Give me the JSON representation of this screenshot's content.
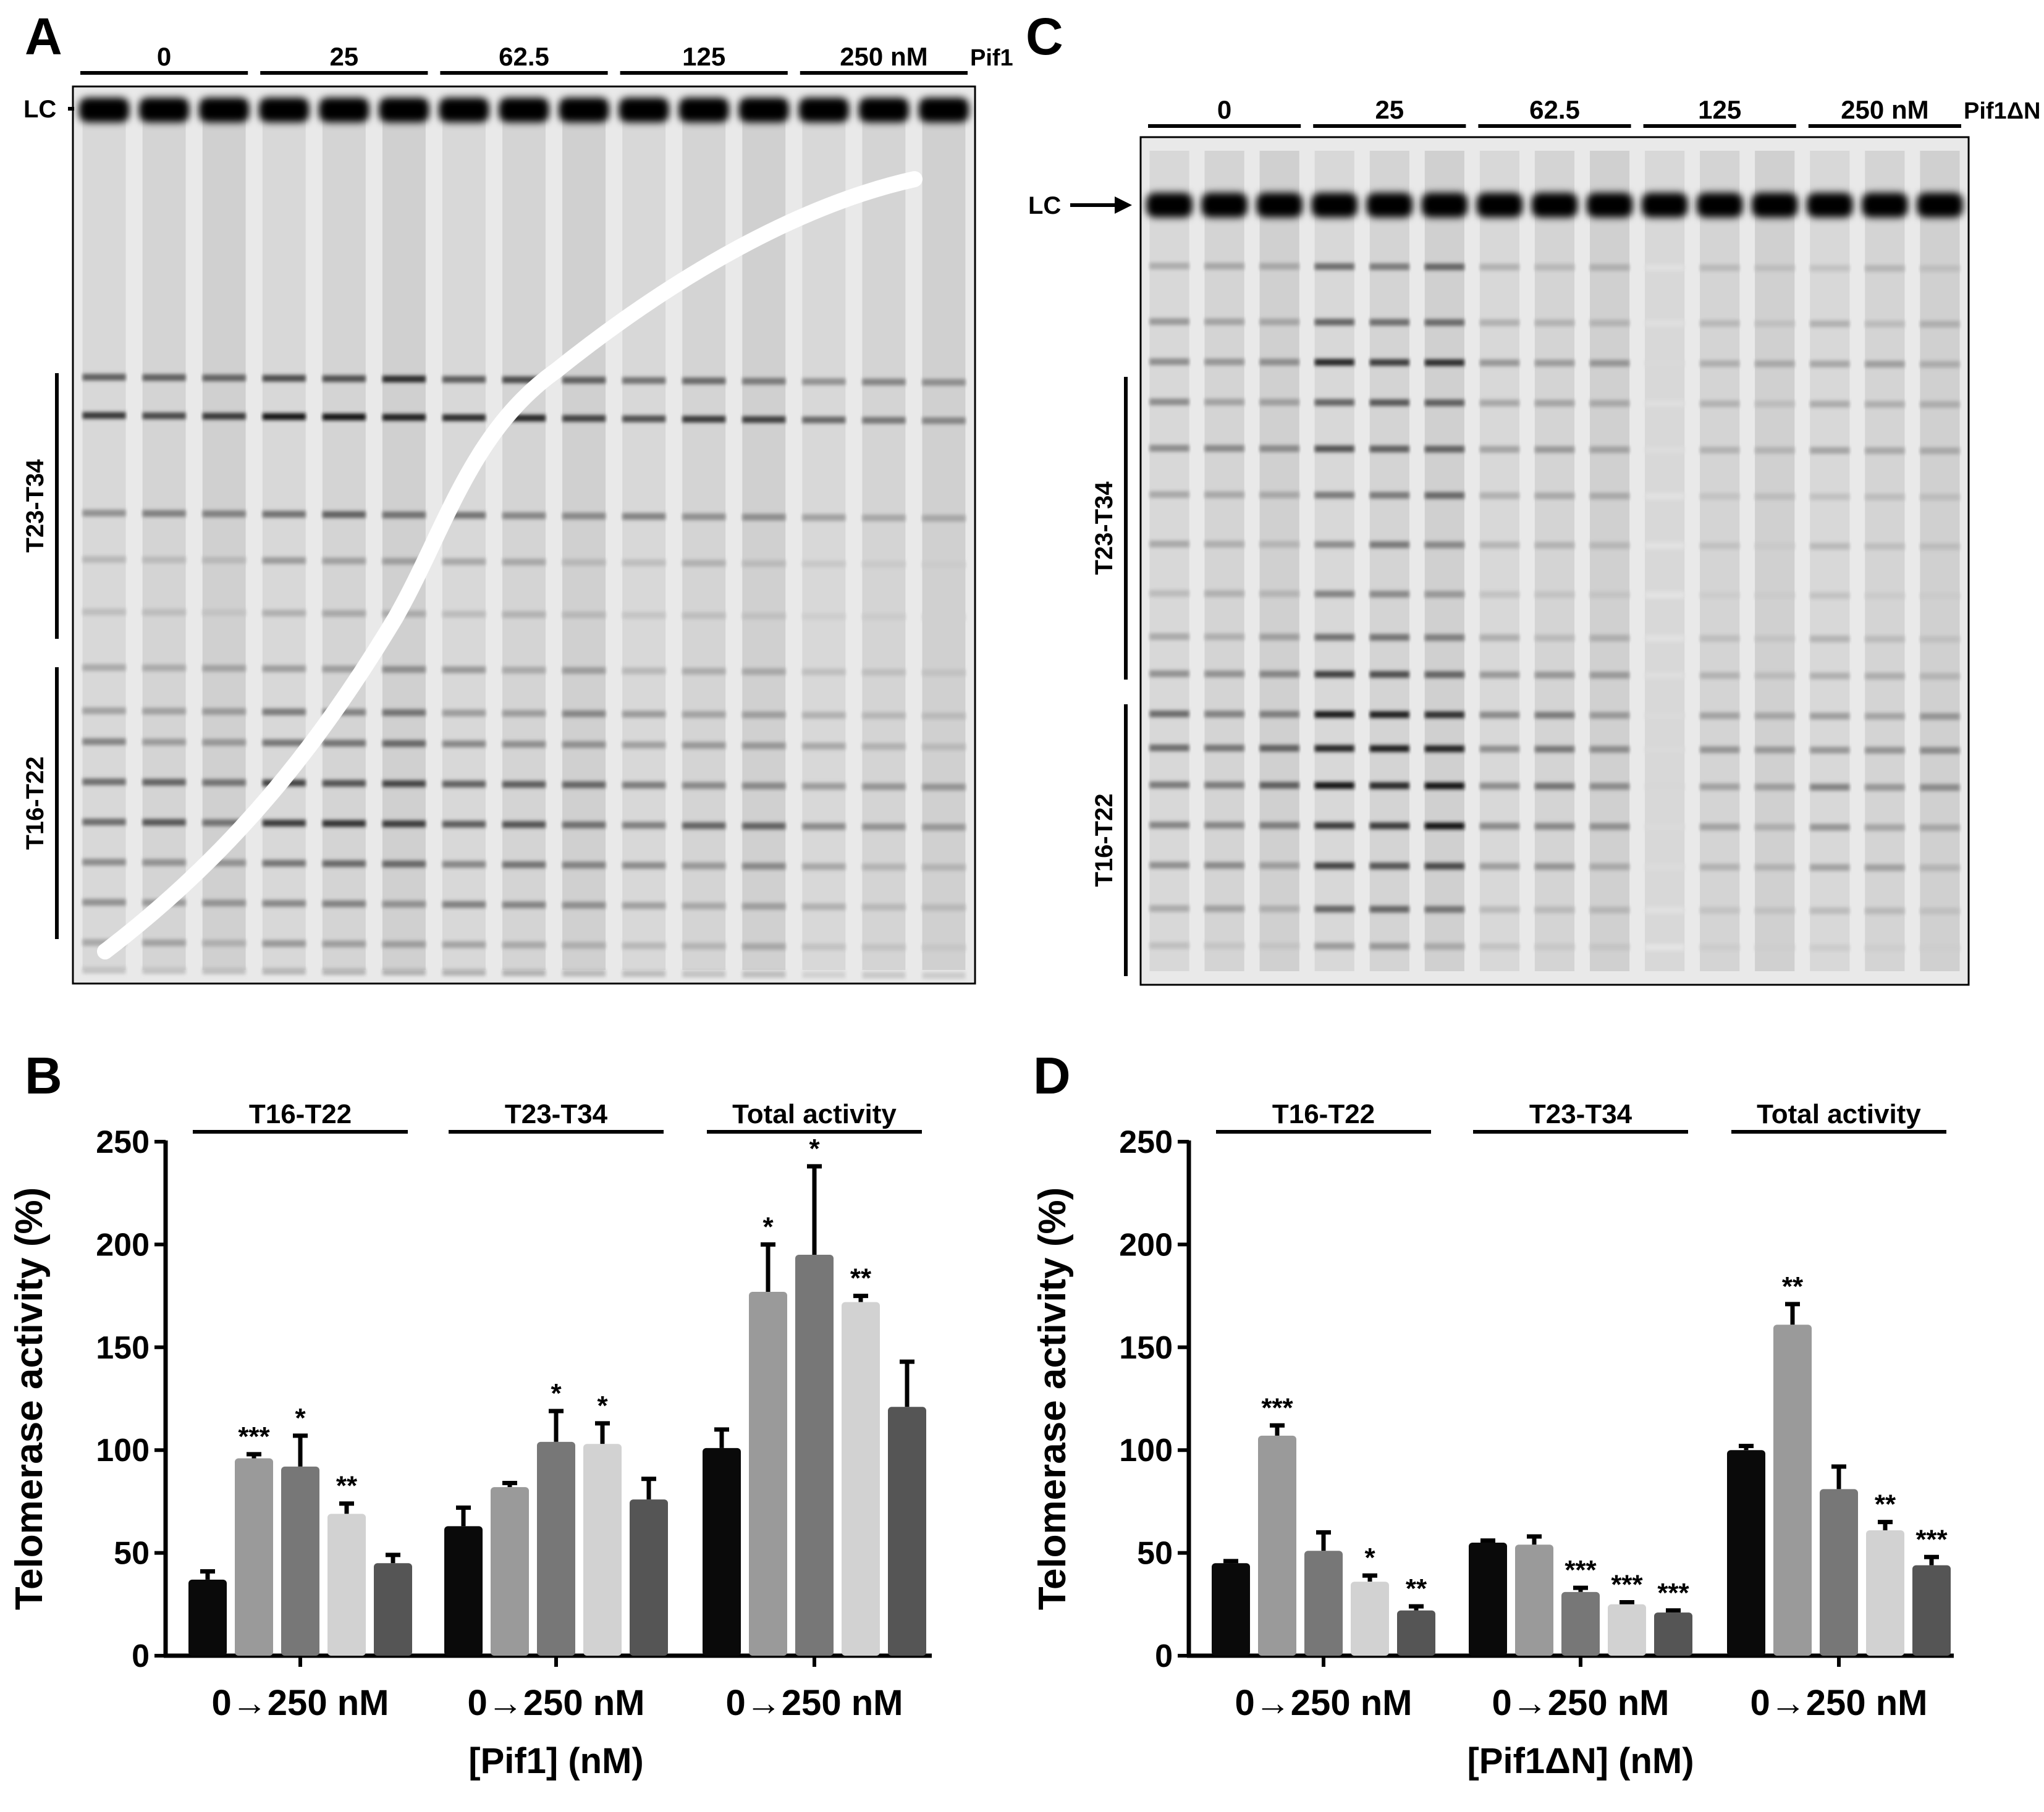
{
  "panels": {
    "A": {
      "letter": "A",
      "lane_groups": [
        "0",
        "25",
        "62.5",
        "125",
        "250 nM"
      ],
      "protein": "Pif1",
      "lc": "LC",
      "band_regions": [
        "T23-T34",
        "T16-T22"
      ]
    },
    "C": {
      "letter": "C",
      "lane_groups": [
        "0",
        "25",
        "62.5",
        "125",
        "250 nM"
      ],
      "protein": "Pif1ΔN",
      "lc": "LC",
      "band_regions": [
        "T23-T34",
        "T16-T22"
      ]
    },
    "B": {
      "letter": "B"
    },
    "D": {
      "letter": "D"
    }
  },
  "colors": {
    "bars": [
      "#0a0a0a",
      "#9a9a9a",
      "#777777",
      "#d2d2d2",
      "#555555"
    ],
    "gel_background": "#e9e9e9",
    "band": "#1a1a1a"
  },
  "chart_data": [
    {
      "type": "bar",
      "panel": "B",
      "title": "",
      "ylabel": "Telomerase activity (%)",
      "xlabel": "[Pif1] (nM)",
      "ylim": [
        0,
        250
      ],
      "yticks": [
        0,
        50,
        100,
        150,
        200,
        250
      ],
      "groups": [
        "T16-T22",
        "T23-T34",
        "Total activity"
      ],
      "group_xlabel": "0→250 nM",
      "series": [
        {
          "name": "0 nM",
          "values": [
            37,
            63,
            101
          ],
          "errors": [
            4,
            9,
            9
          ],
          "stars": [
            "",
            "",
            ""
          ]
        },
        {
          "name": "25 nM",
          "values": [
            96,
            82,
            177
          ],
          "errors": [
            2,
            2,
            23
          ],
          "stars": [
            "***",
            "",
            "*"
          ]
        },
        {
          "name": "62.5 nM",
          "values": [
            92,
            104,
            195
          ],
          "errors": [
            15,
            15,
            43
          ],
          "stars": [
            "*",
            "*",
            "*"
          ]
        },
        {
          "name": "125 nM",
          "values": [
            69,
            103,
            172
          ],
          "errors": [
            5,
            10,
            3
          ],
          "stars": [
            "**",
            "*",
            "**"
          ]
        },
        {
          "name": "250 nM",
          "values": [
            45,
            76,
            121
          ],
          "errors": [
            4,
            10,
            22
          ],
          "stars": [
            "",
            "",
            ""
          ]
        }
      ]
    },
    {
      "type": "bar",
      "panel": "D",
      "title": "",
      "ylabel": "Telomerase activity (%)",
      "xlabel": "[Pif1ΔN] (nM)",
      "ylim": [
        0,
        250
      ],
      "yticks": [
        0,
        50,
        100,
        150,
        200,
        250
      ],
      "groups": [
        "T16-T22",
        "T23-T34",
        "Total activity"
      ],
      "group_xlabel": "0→250 nM",
      "series": [
        {
          "name": "0 nM",
          "values": [
            45,
            55,
            100
          ],
          "errors": [
            1,
            1,
            2
          ],
          "stars": [
            "",
            "",
            ""
          ]
        },
        {
          "name": "25 nM",
          "values": [
            107,
            54,
            161
          ],
          "errors": [
            5,
            4,
            10
          ],
          "stars": [
            "***",
            "",
            "**"
          ]
        },
        {
          "name": "62.5 nM",
          "values": [
            51,
            31,
            81
          ],
          "errors": [
            9,
            2,
            11
          ],
          "stars": [
            "",
            "***",
            ""
          ]
        },
        {
          "name": "125 nM",
          "values": [
            36,
            25,
            61
          ],
          "errors": [
            3,
            1,
            4
          ],
          "stars": [
            "*",
            "***",
            "**"
          ]
        },
        {
          "name": "250 nM",
          "values": [
            22,
            21,
            44
          ],
          "errors": [
            2,
            1,
            4
          ],
          "stars": [
            "**",
            "***",
            "***"
          ]
        }
      ]
    }
  ]
}
